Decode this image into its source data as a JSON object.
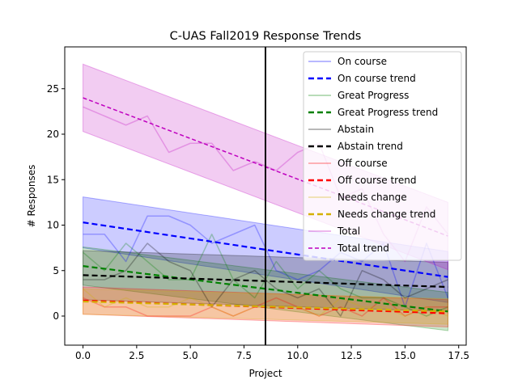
{
  "chart_data": {
    "type": "line",
    "title": "C-UAS Fall2019 Response Trends",
    "xlabel": "Project",
    "ylabel": "# Responses",
    "xlim": [
      -0.85,
      17.85
    ],
    "ylim": [
      -3.2,
      29.6
    ],
    "xticks": [
      0,
      2.5,
      5,
      7.5,
      10,
      12.5,
      15,
      17.5
    ],
    "xtick_labels": [
      "0.0",
      "2.5",
      "5.0",
      "7.5",
      "10.0",
      "12.5",
      "15.0",
      "17.5"
    ],
    "yticks": [
      0,
      5,
      10,
      15,
      20,
      25
    ],
    "ytick_labels": [
      "0",
      "5",
      "10",
      "15",
      "20",
      "25"
    ],
    "grid": false,
    "legend_position": "top-right",
    "vline": {
      "x": 8.5,
      "color": "#000000"
    },
    "x": [
      0,
      1,
      2,
      3,
      4,
      5,
      6,
      7,
      8,
      9,
      10,
      11,
      12,
      13,
      14,
      15,
      16,
      17
    ],
    "series": [
      {
        "name": "On course",
        "color": "#0000ff",
        "values": [
          9,
          9,
          6,
          11,
          11,
          10,
          8,
          9,
          10,
          5,
          4,
          5,
          7,
          6,
          8,
          1,
          8,
          2
        ],
        "trend": [
          10.3,
          4.3
        ],
        "trend_name": "On course trend",
        "band": 2.8
      },
      {
        "name": "Great Progress",
        "color": "#008000",
        "values": [
          7,
          5,
          8,
          6,
          4,
          4,
          9,
          4,
          2,
          6,
          3,
          5,
          3,
          2,
          2,
          1,
          0,
          1
        ],
        "trend": [
          5.5,
          0.5
        ],
        "trend_name": "Great Progress trend",
        "band": 2.1
      },
      {
        "name": "Abstain",
        "color": "#000000",
        "values": [
          4,
          4,
          5,
          8,
          6,
          5,
          1,
          4,
          5,
          3,
          2,
          3,
          0,
          5,
          4,
          2,
          3,
          4
        ],
        "trend": [
          4.5,
          3.2
        ],
        "trend_name": "Abstain trend",
        "band": 2.7
      },
      {
        "name": "Off course",
        "color": "#ff0000",
        "values": [
          2,
          1,
          1,
          0,
          0,
          0,
          1,
          0,
          1,
          2,
          1,
          0,
          1,
          0,
          2,
          0,
          1,
          1
        ],
        "trend": [
          1.7,
          0.3
        ],
        "trend_name": "Off course trend",
        "band": 1.5
      },
      {
        "name": "Needs change",
        "color": "#d4b000",
        "values": [
          3,
          1,
          2,
          1,
          1,
          2,
          1,
          0,
          1,
          1,
          1,
          0,
          2,
          1,
          1,
          0,
          1,
          0
        ],
        "trend": [
          1.6,
          0.5
        ],
        "trend_name": "Needs change trend",
        "band": 1.4
      },
      {
        "name": "Total",
        "color": "#bf00bf",
        "values": [
          23,
          22,
          21,
          22,
          18,
          19,
          19,
          16,
          17,
          16,
          18,
          19,
          13,
          14,
          9,
          6,
          12,
          9
        ],
        "trend": [
          24.0,
          8.8
        ],
        "trend_name": "Total trend",
        "band": 3.7
      }
    ]
  }
}
